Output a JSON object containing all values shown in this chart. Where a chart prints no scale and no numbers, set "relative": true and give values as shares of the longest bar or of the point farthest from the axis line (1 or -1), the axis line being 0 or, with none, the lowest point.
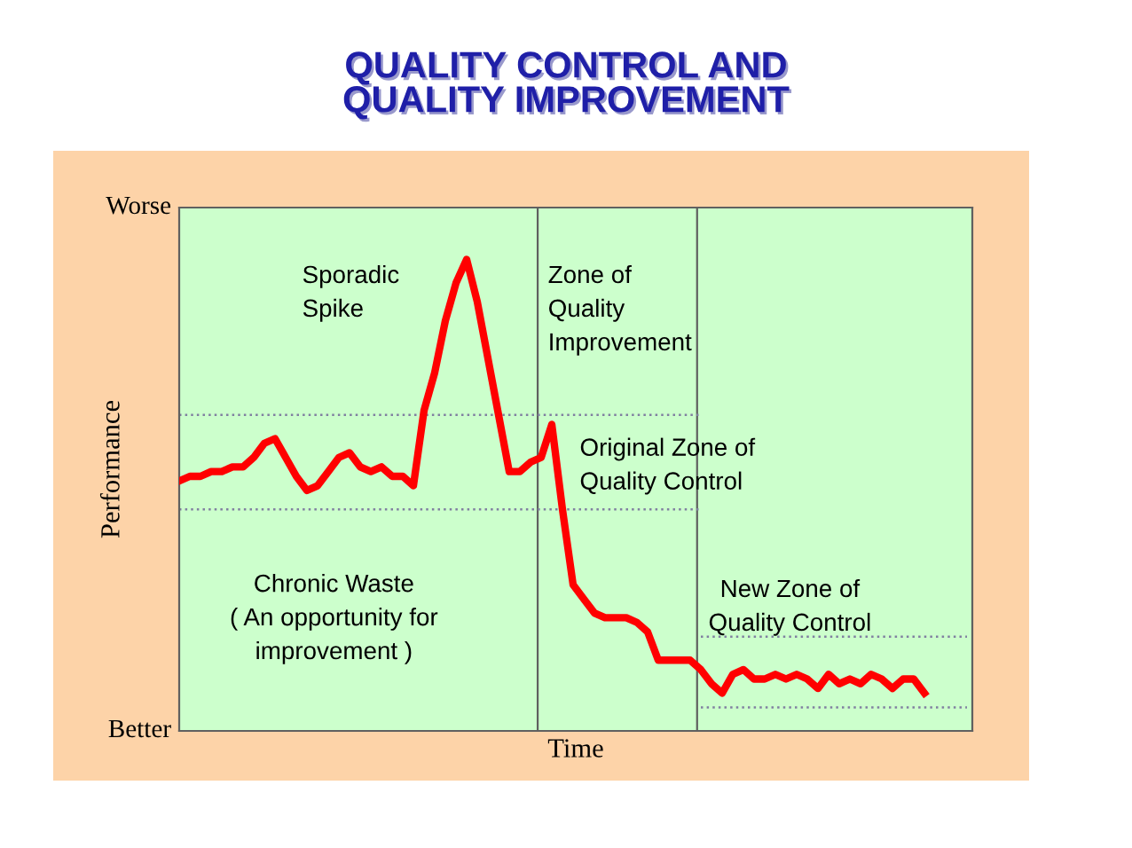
{
  "chart_data": {
    "type": "line",
    "title": "QUALITY CONTROL AND\nQUALITY IMPROVEMENT",
    "xlabel": "Time",
    "ylabel": "Performance",
    "relative": true,
    "legend": false,
    "marker": "none",
    "categories": [
      null,
      null,
      null,
      null,
      null,
      null,
      null,
      null,
      null,
      null,
      null,
      null,
      null,
      null,
      null,
      null,
      null,
      null,
      null,
      null,
      null,
      null,
      null,
      null,
      null,
      null,
      null,
      null,
      null,
      null,
      null,
      null,
      null,
      null,
      null,
      null,
      null,
      null,
      null,
      null,
      null,
      null,
      null,
      null,
      null,
      null,
      null,
      null,
      null,
      null,
      null,
      null,
      null,
      null,
      null,
      null,
      null,
      null,
      null,
      null,
      null,
      null,
      null,
      null,
      null,
      null,
      null,
      null,
      null,
      null,
      null,
      null,
      null,
      null,
      null
    ],
    "series": [
      {
        "color": "#ff0000",
        "line_style": "solid",
        "values": [
          0.53,
          0.54,
          0.54,
          0.55,
          0.55,
          0.56,
          0.56,
          0.58,
          0.61,
          0.62,
          0.58,
          0.54,
          0.51,
          0.52,
          0.55,
          0.58,
          0.59,
          0.56,
          0.55,
          0.56,
          0.54,
          0.54,
          0.52,
          0.68,
          0.76,
          0.87,
          0.95,
          1,
          0.91,
          0.79,
          0.67,
          0.55,
          0.55,
          0.57,
          0.58,
          0.65,
          0.47,
          0.31,
          0.28,
          0.25,
          0.24,
          0.24,
          0.24,
          0.23,
          0.21,
          0.15,
          0.15,
          0.15,
          0.15,
          0.13,
          0.1,
          0.08,
          0.12,
          0.13,
          0.11,
          0.11,
          0.12,
          0.11,
          0.12,
          0.11,
          0.09,
          0.12,
          0.1,
          0.11,
          0.1,
          0.12,
          0.11,
          0.09,
          0.11,
          0.11,
          0.08,
          null,
          null,
          null,
          null
        ]
      },
      {
        "color": "#8080a0",
        "line_style": "dotted",
        "values": [
          0.67,
          0.67,
          0.67,
          0.67,
          0.67,
          0.67,
          0.67,
          0.67,
          0.67,
          0.67,
          0.67,
          0.67,
          0.67,
          0.67,
          0.67,
          0.67,
          0.67,
          0.67,
          0.67,
          0.67,
          0.67,
          0.67,
          0.67,
          0.67,
          0.67,
          0.67,
          0.67,
          0.67,
          0.67,
          0.67,
          0.67,
          0.67,
          0.67,
          0.67,
          0.67,
          0.67,
          0.67,
          0.67,
          0.67,
          0.67,
          0.67,
          0.67,
          0.67,
          0.67,
          0.67,
          0.67,
          0.67,
          0.67,
          0.67,
          0.67,
          null,
          null,
          null,
          null,
          null,
          null,
          null,
          null,
          null,
          null,
          null,
          null,
          null,
          null,
          null,
          null,
          null,
          null,
          null,
          null,
          null,
          null,
          null,
          null,
          null
        ]
      },
      {
        "color": "#8080a0",
        "line_style": "dotted",
        "values": [
          0.47,
          0.47,
          0.47,
          0.47,
          0.47,
          0.47,
          0.47,
          0.47,
          0.47,
          0.47,
          0.47,
          0.47,
          0.47,
          0.47,
          0.47,
          0.47,
          0.47,
          0.47,
          0.47,
          0.47,
          0.47,
          0.47,
          0.47,
          0.47,
          0.47,
          0.47,
          0.47,
          0.47,
          0.47,
          0.47,
          0.47,
          0.47,
          0.47,
          0.47,
          0.47,
          0.47,
          0.47,
          0.47,
          0.47,
          0.47,
          0.47,
          0.47,
          0.47,
          0.47,
          0.47,
          0.47,
          0.47,
          0.47,
          0.47,
          0.47,
          null,
          null,
          null,
          null,
          null,
          null,
          null,
          null,
          null,
          null,
          null,
          null,
          null,
          null,
          null,
          null,
          null,
          null,
          null,
          null,
          null,
          null,
          null,
          null,
          null
        ]
      },
      {
        "color": "#8080a0",
        "line_style": "dotted",
        "values": [
          null,
          null,
          null,
          null,
          null,
          null,
          null,
          null,
          null,
          null,
          null,
          null,
          null,
          null,
          null,
          null,
          null,
          null,
          null,
          null,
          null,
          null,
          null,
          null,
          null,
          null,
          null,
          null,
          null,
          null,
          null,
          null,
          null,
          null,
          null,
          null,
          null,
          null,
          null,
          null,
          null,
          null,
          null,
          null,
          null,
          null,
          null,
          null,
          null,
          0.2,
          0.2,
          0.2,
          0.2,
          0.2,
          0.2,
          0.2,
          0.2,
          0.2,
          0.2,
          0.2,
          0.2,
          0.2,
          0.2,
          0.2,
          0.2,
          0.2,
          0.2,
          0.2,
          0.2,
          0.2,
          0.2,
          0.2,
          0.2,
          0.2,
          0.2
        ]
      },
      {
        "color": "#8080a0",
        "line_style": "dotted",
        "values": [
          null,
          null,
          null,
          null,
          null,
          null,
          null,
          null,
          null,
          null,
          null,
          null,
          null,
          null,
          null,
          null,
          null,
          null,
          null,
          null,
          null,
          null,
          null,
          null,
          null,
          null,
          null,
          null,
          null,
          null,
          null,
          null,
          null,
          null,
          null,
          null,
          null,
          null,
          null,
          null,
          null,
          null,
          null,
          null,
          null,
          null,
          null,
          null,
          null,
          0.05,
          0.05,
          0.05,
          0.05,
          0.05,
          0.05,
          0.05,
          0.05,
          0.05,
          0.05,
          0.05,
          0.05,
          0.05,
          0.05,
          0.05,
          0.05,
          0.05,
          0.05,
          0.05,
          0.05,
          0.05,
          0.05,
          0.05,
          0.05,
          0.05,
          0.05
        ]
      }
    ],
    "annotations": [
      "Worse",
      "Better",
      "Sporadic\nSpike",
      "Zone of\nQuality\nImprovement",
      "Original Zone of\nQuality Control",
      "Chronic Waste\n( An opportunity for\nimprovement )",
      "New Zone of\nQuality Control"
    ]
  }
}
